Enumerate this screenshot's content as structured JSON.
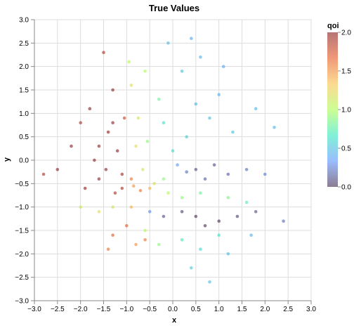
{
  "chart_data": {
    "type": "scatter",
    "title": "True Values",
    "xlabel": "x",
    "ylabel": "y",
    "xlim": [
      -3.0,
      3.0
    ],
    "ylim": [
      -3.0,
      3.0
    ],
    "x_ticks": [
      "−3.0",
      "−2.5",
      "−2.0",
      "−1.5",
      "−1.0",
      "−0.5",
      "0.0",
      "0.5",
      "1.0",
      "1.5",
      "2.0",
      "2.5",
      "3.0"
    ],
    "y_ticks": [
      "−3.0",
      "−2.5",
      "−2.0",
      "−1.5",
      "−1.0",
      "−0.5",
      "0.0",
      "0.5",
      "1.0",
      "1.5",
      "2.0",
      "2.5",
      "3.0"
    ],
    "grid": true,
    "legend": {
      "title": "qoi",
      "placement": "right",
      "labels": [
        "0.0",
        "0.5",
        "1.0",
        "1.5",
        "2.0"
      ],
      "domain": [
        0.0,
        2.0
      ],
      "colormap": [
        "#30123b",
        "#4686fb",
        "#1ae4b6",
        "#a2fc3c",
        "#fabb39",
        "#e4460a",
        "#7a0403"
      ]
    },
    "point_opacity": 0.55,
    "points": [
      [
        -1.4,
        0.6,
        2.0
      ],
      [
        -1.2,
        0.2,
        2.0
      ],
      [
        -1.6,
        -0.4,
        2.0
      ],
      [
        -1.8,
        1.1,
        2.0
      ],
      [
        -1.3,
        1.5,
        2.0
      ],
      [
        -2.2,
        0.3,
        2.0
      ],
      [
        -2.5,
        -0.2,
        2.0
      ],
      [
        -1.9,
        -0.6,
        2.0
      ],
      [
        -1.1,
        -0.3,
        1.95
      ],
      [
        -1.05,
        0.9,
        1.8
      ],
      [
        -1.5,
        2.3,
        1.9
      ],
      [
        -2.8,
        -0.3,
        1.9
      ],
      [
        -1.7,
        0.0,
        2.0
      ],
      [
        -1.25,
        -0.7,
        1.9
      ],
      [
        -0.9,
        1.6,
        1.2
      ],
      [
        -0.75,
        0.9,
        1.1
      ],
      [
        -0.6,
        1.9,
        1.0
      ],
      [
        -0.85,
        -0.55,
        1.5
      ],
      [
        -0.7,
        -0.65,
        1.6
      ],
      [
        -0.5,
        -0.6,
        1.4
      ],
      [
        -0.4,
        -0.5,
        1.2
      ],
      [
        -0.9,
        -0.4,
        1.6
      ],
      [
        -0.3,
        1.3,
        0.8
      ],
      [
        -0.55,
        0.4,
        0.9
      ],
      [
        -0.8,
        0.3,
        1.2
      ],
      [
        -0.95,
        2.1,
        1.0
      ],
      [
        -0.65,
        -0.2,
        1.1
      ],
      [
        -0.2,
        -0.4,
        0.9
      ],
      [
        0.0,
        0.2,
        0.6
      ],
      [
        0.3,
        0.5,
        0.55
      ],
      [
        0.5,
        1.2,
        0.45
      ],
      [
        0.8,
        0.9,
        0.5
      ],
      [
        -0.2,
        0.8,
        0.65
      ],
      [
        1.0,
        1.4,
        0.45
      ],
      [
        0.2,
        1.9,
        0.5
      ],
      [
        0.6,
        2.2,
        0.45
      ],
      [
        1.3,
        0.6,
        0.5
      ],
      [
        1.8,
        1.1,
        0.45
      ],
      [
        2.2,
        0.7,
        0.45
      ],
      [
        1.1,
        2.0,
        0.4
      ],
      [
        0.4,
        2.6,
        0.4
      ],
      [
        -0.1,
        2.5,
        0.5
      ],
      [
        0.5,
        -0.2,
        0.1
      ],
      [
        0.9,
        -0.1,
        0.1
      ],
      [
        1.2,
        -0.3,
        0.15
      ],
      [
        0.7,
        -0.4,
        0.15
      ],
      [
        1.6,
        -0.2,
        0.2
      ],
      [
        2.0,
        -0.3,
        0.25
      ],
      [
        0.3,
        -0.25,
        0.2
      ],
      [
        0.1,
        -0.1,
        0.35
      ],
      [
        0.5,
        -1.2,
        0.0
      ],
      [
        1.0,
        -1.3,
        0.0
      ],
      [
        0.2,
        -1.1,
        0.05
      ],
      [
        1.4,
        -1.2,
        0.05
      ],
      [
        0.7,
        -1.4,
        0.0
      ],
      [
        -0.2,
        -1.2,
        0.1
      ],
      [
        1.8,
        -1.1,
        0.1
      ],
      [
        -0.5,
        -1.1,
        0.3
      ],
      [
        2.4,
        -1.3,
        0.2
      ],
      [
        0.6,
        -0.7,
        0.8
      ],
      [
        1.2,
        -0.8,
        0.85
      ],
      [
        1.6,
        -0.9,
        0.75
      ],
      [
        0.2,
        -0.8,
        0.9
      ],
      [
        -0.1,
        -0.7,
        1.0
      ],
      [
        0.2,
        -1.7,
        0.7
      ],
      [
        0.6,
        -1.9,
        0.6
      ],
      [
        1.0,
        -1.6,
        0.65
      ],
      [
        -0.3,
        -1.8,
        0.9
      ],
      [
        0.4,
        -2.3,
        0.55
      ],
      [
        1.2,
        -2.0,
        0.5
      ],
      [
        0.8,
        -2.6,
        0.5
      ],
      [
        -0.6,
        -1.5,
        1.0
      ],
      [
        1.7,
        -1.6,
        0.45
      ],
      [
        -0.9,
        -1.0,
        1.4
      ],
      [
        -1.3,
        -1.0,
        1.1
      ],
      [
        -1.6,
        -1.1,
        1.2
      ],
      [
        -2.0,
        -1.0,
        1.1
      ],
      [
        -0.8,
        -1.8,
        1.5
      ],
      [
        -0.6,
        -1.7,
        1.6
      ],
      [
        -1.0,
        -1.4,
        1.7
      ],
      [
        -1.4,
        -1.9,
        1.6
      ],
      [
        -1.3,
        -1.6,
        1.7
      ],
      [
        -2.0,
        0.8,
        1.9
      ],
      [
        -1.6,
        0.3,
        2.0
      ],
      [
        -1.3,
        0.8,
        2.0
      ],
      [
        -1.1,
        -0.6,
        1.9
      ],
      [
        -1.45,
        -0.2,
        2.0
      ]
    ]
  }
}
